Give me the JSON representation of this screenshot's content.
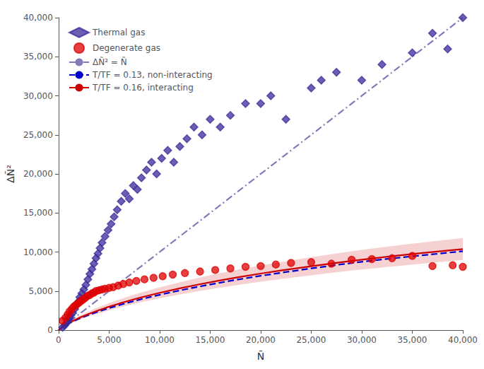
{
  "chart_data": {
    "type": "scatter",
    "xlabel": "Ñ",
    "ylabel": "ΔÑ²",
    "xlim": [
      0,
      40000
    ],
    "ylim": [
      0,
      40000
    ],
    "xticks": [
      0,
      {
        "value": 5000,
        "label": "5,000"
      },
      {
        "value": 10000,
        "label": "10,000"
      },
      {
        "value": 15000,
        "label": "15,000"
      },
      {
        "value": 20000,
        "label": "20,000"
      },
      {
        "value": 25000,
        "label": "25,000"
      },
      {
        "value": 30000,
        "label": "30,000"
      },
      {
        "value": 35000,
        "label": "35,000"
      },
      {
        "value": 40000,
        "label": "40,000"
      }
    ],
    "yticks": [
      0,
      {
        "value": 5000,
        "label": "5,000"
      },
      {
        "value": 10000,
        "label": "10,000"
      },
      {
        "value": 15000,
        "label": "15,000"
      },
      {
        "value": 20000,
        "label": "20,000"
      },
      {
        "value": 25000,
        "label": "25,000"
      },
      {
        "value": 30000,
        "label": "30,000"
      },
      {
        "value": 35000,
        "label": "35,000"
      },
      {
        "value": 40000,
        "label": "40,000"
      }
    ],
    "grid": false,
    "legend": "upper left",
    "series": [
      {
        "name": "Thermal gas",
        "type": "scatter",
        "marker": "diamond",
        "color": "#3a2a99",
        "x": [
          400,
          600,
          800,
          900,
          1000,
          1100,
          1200,
          1400,
          1600,
          1800,
          2000,
          2100,
          2300,
          2500,
          2700,
          2900,
          3100,
          3300,
          3500,
          3700,
          3900,
          4100,
          4300,
          4600,
          4900,
          5200,
          5500,
          5800,
          6200,
          6600,
          7000,
          7400,
          7800,
          8200,
          8700,
          9200,
          9700,
          10200,
          10800,
          11400,
          12000,
          12700,
          13400,
          14200,
          15000,
          16000,
          17000,
          18500,
          20000,
          21000,
          22500,
          25000,
          26000,
          27500,
          30000,
          32000,
          35000,
          37000,
          38500,
          40000
        ],
        "values": [
          350,
          600,
          900,
          1100,
          1400,
          1600,
          1900,
          2200,
          2700,
          3200,
          3700,
          4200,
          4700,
          5200,
          5800,
          6500,
          7200,
          7800,
          8500,
          9200,
          9800,
          10500,
          11200,
          12000,
          12800,
          13600,
          14500,
          15400,
          16500,
          17500,
          16800,
          18500,
          18000,
          19500,
          20500,
          21500,
          20000,
          22000,
          23000,
          21500,
          23500,
          24500,
          26000,
          25000,
          27000,
          26000,
          27500,
          29000,
          29000,
          30000,
          27000,
          31000,
          32000,
          33000,
          32000,
          34000,
          35500,
          38000,
          36000,
          40000
        ]
      },
      {
        "name": "Degenerate gas",
        "type": "scatter",
        "marker": "circle",
        "color": "#dd0000",
        "x": [
          400,
          700,
          900,
          1100,
          1300,
          1500,
          1700,
          1900,
          2100,
          2300,
          2500,
          2700,
          2900,
          3100,
          3300,
          3500,
          3700,
          4000,
          4300,
          4600,
          5000,
          5400,
          5900,
          6400,
          7000,
          7700,
          8500,
          9400,
          10300,
          11300,
          12500,
          14000,
          15500,
          17000,
          18500,
          20000,
          21500,
          23000,
          25000,
          27000,
          29000,
          31000,
          33000,
          35000,
          37000,
          39000,
          40000
        ],
        "values": [
          1200,
          1600,
          2000,
          2400,
          2700,
          3000,
          3200,
          3400,
          3600,
          3800,
          4000,
          4200,
          4400,
          4500,
          4700,
          4800,
          5000,
          5100,
          5200,
          5300,
          5400,
          5500,
          5700,
          5900,
          6100,
          6300,
          6500,
          6700,
          6900,
          7100,
          7300,
          7500,
          7700,
          7900,
          8100,
          8200,
          8400,
          8600,
          8700,
          8500,
          9000,
          9100,
          9200,
          9500,
          8200,
          8300,
          8100
        ]
      },
      {
        "name": "ΔÑ² = Ñ",
        "type": "line",
        "line_style": "dashdot",
        "color": "#8878bb",
        "x": [
          0,
          40000
        ],
        "values": [
          0,
          40000
        ]
      },
      {
        "name": "T/TF = 0.13, non-interacting",
        "type": "line",
        "line_style": "dashed",
        "color": "#0000cc",
        "x": [
          0,
          500,
          1000,
          2000,
          3000,
          4000,
          5000,
          6000,
          7000,
          8000,
          9000,
          10000,
          12000,
          14000,
          16000,
          18000,
          20000,
          22000,
          25000,
          28000,
          30000,
          33000,
          36000,
          40000
        ],
        "values": [
          0,
          500,
          850,
          1450,
          1950,
          2400,
          2820,
          3200,
          3560,
          3900,
          4220,
          4520,
          5080,
          5600,
          6080,
          6530,
          6950,
          7340,
          7900,
          8420,
          8750,
          9180,
          9580,
          10100
        ]
      },
      {
        "name": "T/TF = 0.16, interacting",
        "type": "line",
        "line_style": "solid",
        "color": "#cc0000",
        "x": [
          0,
          500,
          1000,
          2000,
          3000,
          4000,
          5000,
          6000,
          7000,
          8000,
          9000,
          10000,
          12000,
          14000,
          16000,
          18000,
          20000,
          22000,
          25000,
          28000,
          30000,
          33000,
          36000,
          40000
        ],
        "values": [
          0,
          530,
          900,
          1550,
          2080,
          2560,
          3000,
          3400,
          3780,
          4130,
          4460,
          4770,
          5350,
          5880,
          6370,
          6820,
          7240,
          7630,
          8180,
          8700,
          9020,
          9460,
          9870,
          10380
        ],
        "upper": [
          0,
          620,
          1050,
          1800,
          2400,
          2960,
          3460,
          3920,
          4340,
          4740,
          5120,
          5470,
          6140,
          6740,
          7300,
          7810,
          8280,
          8720,
          9340,
          9920,
          10270,
          10770,
          11230,
          11780
        ],
        "lower": [
          0,
          440,
          750,
          1300,
          1760,
          2160,
          2540,
          2880,
          3220,
          3520,
          3800,
          4070,
          4560,
          5020,
          5440,
          5830,
          6200,
          6540,
          7020,
          7480,
          7770,
          8150,
          8510,
          8980
        ]
      }
    ]
  }
}
